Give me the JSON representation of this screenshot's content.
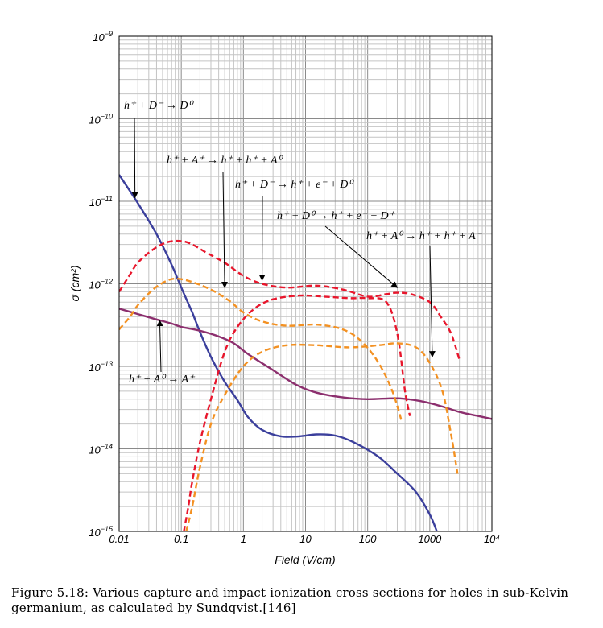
{
  "chart_data": {
    "type": "line",
    "xlabel": "Field (V/cm)",
    "ylabel": "σ (cm²)",
    "x_scale": "log",
    "y_scale": "log",
    "xlim": [
      0.01,
      10000
    ],
    "ylim": [
      1e-15,
      1e-09
    ],
    "grid": true,
    "x_tick_labels": [
      "0.01",
      "0.1",
      "1",
      "10",
      "100",
      "1000",
      "10⁴"
    ],
    "y_tick_labels": [
      {
        "base": "10",
        "exp": "−9"
      },
      {
        "base": "10",
        "exp": "−10"
      },
      {
        "base": "10",
        "exp": "−11"
      },
      {
        "base": "10",
        "exp": "−12"
      },
      {
        "base": "10",
        "exp": "−13"
      },
      {
        "base": "10",
        "exp": "−14"
      },
      {
        "base": "10",
        "exp": "−15"
      }
    ],
    "series": [
      {
        "color": "#3b3f9c",
        "style": "solid",
        "points": [
          [
            0.01,
            2.1e-11
          ],
          [
            0.02,
            9.5e-12
          ],
          [
            0.04,
            4e-12
          ],
          [
            0.07,
            1.7e-12
          ],
          [
            0.1,
            9e-13
          ],
          [
            0.15,
            4.5e-13
          ],
          [
            0.2,
            2.6e-13
          ],
          [
            0.3,
            1.3e-13
          ],
          [
            0.5,
            6.5e-14
          ],
          [
            0.8,
            3.9e-14
          ],
          [
            1.2,
            2.4e-14
          ],
          [
            2,
            1.7e-14
          ],
          [
            4,
            1.42e-14
          ],
          [
            8,
            1.42e-14
          ],
          [
            15,
            1.5e-14
          ],
          [
            30,
            1.45e-14
          ],
          [
            60,
            1.2e-14
          ],
          [
            150,
            8e-15
          ],
          [
            300,
            5e-15
          ],
          [
            600,
            3e-15
          ],
          [
            1000,
            1.6e-15
          ],
          [
            1300,
            1e-15
          ]
        ]
      },
      {
        "color": "#8c2f6e",
        "style": "solid",
        "points": [
          [
            0.01,
            5e-13
          ],
          [
            0.02,
            4.3e-13
          ],
          [
            0.04,
            3.7e-13
          ],
          [
            0.07,
            3.3e-13
          ],
          [
            0.1,
            3e-13
          ],
          [
            0.2,
            2.7e-13
          ],
          [
            0.4,
            2.3e-13
          ],
          [
            0.7,
            1.9e-13
          ],
          [
            1.2,
            1.4e-13
          ],
          [
            3,
            9e-14
          ],
          [
            7,
            6e-14
          ],
          [
            15,
            4.8e-14
          ],
          [
            40,
            4.2e-14
          ],
          [
            100,
            4e-14
          ],
          [
            300,
            4.1e-14
          ],
          [
            700,
            3.8e-14
          ],
          [
            1500,
            3.3e-14
          ],
          [
            3000,
            2.8e-14
          ],
          [
            6000,
            2.5e-14
          ],
          [
            10000,
            2.3e-14
          ]
        ]
      },
      {
        "color": "#e8162c",
        "style": "dashed",
        "points": [
          [
            0.01,
            8e-13
          ],
          [
            0.015,
            1.3e-12
          ],
          [
            0.02,
            1.8e-12
          ],
          [
            0.035,
            2.6e-12
          ],
          [
            0.06,
            3.2e-12
          ],
          [
            0.1,
            3.3e-12
          ],
          [
            0.15,
            3e-12
          ],
          [
            0.25,
            2.4e-12
          ],
          [
            0.5,
            1.8e-12
          ],
          [
            1,
            1.25e-12
          ],
          [
            2,
            1e-12
          ],
          [
            5,
            9e-13
          ],
          [
            15,
            9.5e-13
          ],
          [
            40,
            8.5e-13
          ],
          [
            100,
            7e-13
          ],
          [
            200,
            7.5e-13
          ],
          [
            300,
            7.8e-13
          ],
          [
            500,
            7.5e-13
          ],
          [
            1000,
            6e-13
          ],
          [
            1500,
            4e-13
          ],
          [
            2200,
            2.5e-13
          ],
          [
            3000,
            1.2e-13
          ]
        ]
      },
      {
        "color": "#e8162c",
        "style": "dashed",
        "points": [
          [
            0.11,
            1e-15
          ],
          [
            0.13,
            2e-15
          ],
          [
            0.15,
            4e-15
          ],
          [
            0.2,
            1.2e-14
          ],
          [
            0.3,
            4e-14
          ],
          [
            0.5,
            1.5e-13
          ],
          [
            0.8,
            3e-13
          ],
          [
            1.5,
            5e-13
          ],
          [
            3,
            6.5e-13
          ],
          [
            8,
            7.2e-13
          ],
          [
            20,
            7e-13
          ],
          [
            50,
            6.7e-13
          ],
          [
            100,
            6.7e-13
          ],
          [
            200,
            6e-13
          ],
          [
            300,
            2.5e-13
          ],
          [
            400,
            5e-14
          ],
          [
            480,
            2.5e-14
          ]
        ]
      },
      {
        "color": "#f39122",
        "style": "dashed",
        "points": [
          [
            0.01,
            2.8e-13
          ],
          [
            0.015,
            4e-13
          ],
          [
            0.02,
            5.5e-13
          ],
          [
            0.035,
            8.5e-13
          ],
          [
            0.06,
            1.1e-12
          ],
          [
            0.09,
            1.15e-12
          ],
          [
            0.15,
            1.05e-12
          ],
          [
            0.3,
            8.5e-13
          ],
          [
            0.6,
            6.2e-13
          ],
          [
            1,
            4.5e-13
          ],
          [
            2,
            3.5e-13
          ],
          [
            5,
            3.1e-13
          ],
          [
            15,
            3.2e-13
          ],
          [
            40,
            2.8e-13
          ],
          [
            80,
            2e-13
          ],
          [
            150,
            1.1e-13
          ],
          [
            250,
            5e-14
          ],
          [
            350,
            2.2e-14
          ]
        ]
      },
      {
        "color": "#f39122",
        "style": "dashed",
        "points": [
          [
            0.12,
            1e-15
          ],
          [
            0.15,
            2e-15
          ],
          [
            0.2,
            6e-15
          ],
          [
            0.3,
            2e-14
          ],
          [
            0.5,
            4.5e-14
          ],
          [
            1,
            1e-13
          ],
          [
            2,
            1.5e-13
          ],
          [
            5,
            1.8e-13
          ],
          [
            15,
            1.8e-13
          ],
          [
            50,
            1.7e-13
          ],
          [
            150,
            1.8e-13
          ],
          [
            300,
            1.9e-13
          ],
          [
            600,
            1.7e-13
          ],
          [
            1000,
            1.1e-13
          ],
          [
            1600,
            5e-14
          ],
          [
            2200,
            1.5e-14
          ],
          [
            2800,
            5e-15
          ]
        ]
      }
    ],
    "annotations": [
      {
        "text": "h⁺ + D⁻ → D⁰",
        "x": 0.018,
        "y": 1.1e-11
      },
      {
        "text": "h⁺ + A⁺ → h⁺ + h⁺ + A⁰",
        "x": 0.5,
        "y": 9e-13
      },
      {
        "text": "h⁺ + D⁻ → h⁺ + e⁻ + D⁰",
        "x": 2.0,
        "y": 1.1e-12
      },
      {
        "text": "h⁺ + D⁰ → h⁺ + e⁻ + D⁺",
        "x": 300,
        "y": 9e-13
      },
      {
        "text": "h⁺ + A⁰ → h⁺ + h⁺ + A⁻",
        "x": 1100,
        "y": 1.3e-13
      },
      {
        "text": "h⁺ + A⁰ → A⁺",
        "x": 0.045,
        "y": 3.6e-13
      }
    ]
  },
  "caption": "Figure 5.18: Various capture and impact ionization cross sections for holes in sub-Kelvin germanium, as calculated by Sundqvist.[146]"
}
